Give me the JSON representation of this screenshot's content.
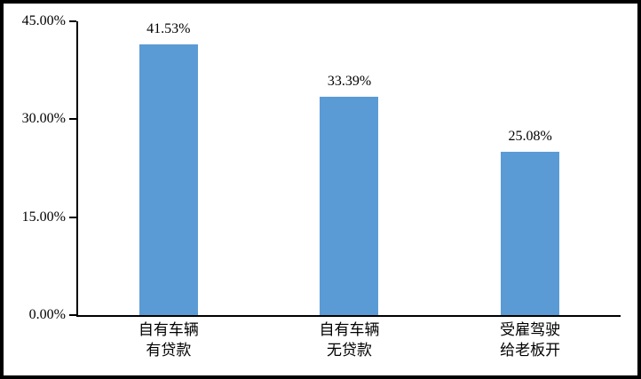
{
  "chart_data": {
    "type": "bar",
    "title": "",
    "xlabel": "",
    "ylabel": "",
    "categories": [
      "自有车辆\n有贷款",
      "自有车辆\n无贷款",
      "受雇驾驶\n给老板开"
    ],
    "values": [
      41.53,
      33.39,
      25.08
    ],
    "data_labels": [
      "41.53%",
      "33.39%",
      "25.08%"
    ],
    "ylim": [
      0,
      45
    ],
    "yticks": [
      0,
      15,
      30,
      45
    ],
    "ytick_labels": [
      "0.00%",
      "15.00%",
      "30.00%",
      "45.00%"
    ],
    "grid": false,
    "legend": false,
    "colors": {
      "bar": "#5B9BD5",
      "axis": "#000000",
      "text": "#000000",
      "background": "#FFFFFF",
      "frame_border": "#000000"
    }
  }
}
